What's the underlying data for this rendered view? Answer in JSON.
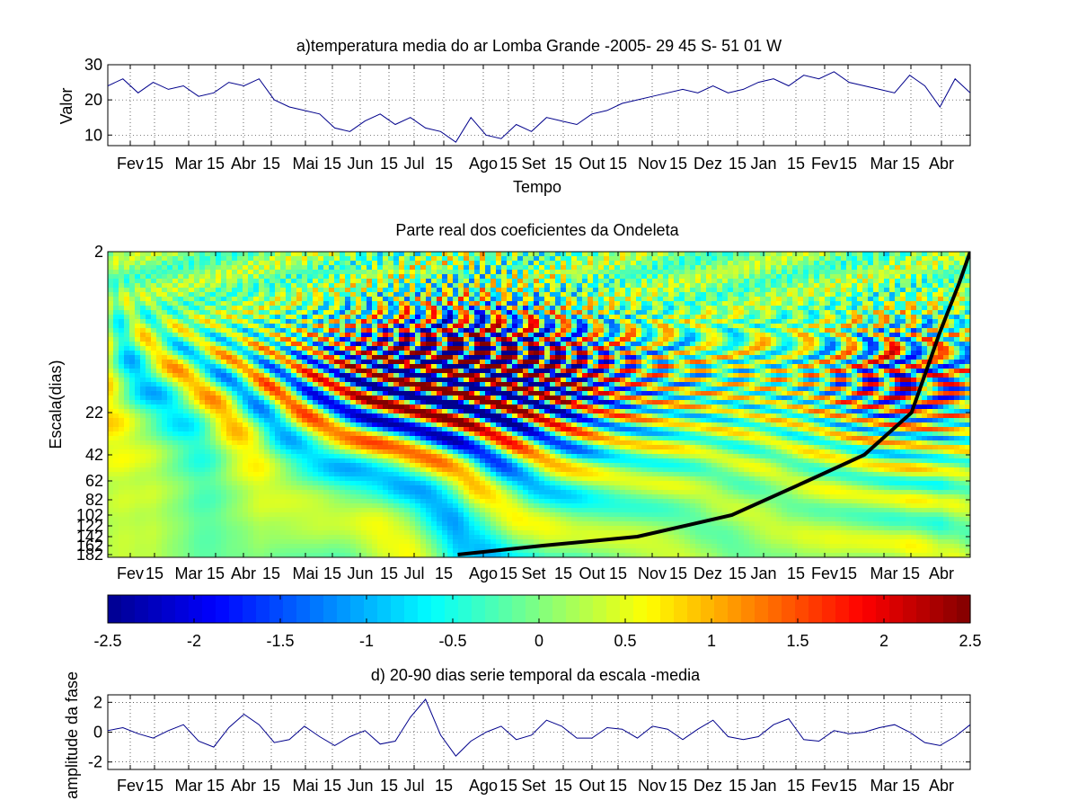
{
  "figure": {
    "background": "#ffffff",
    "axis_color": "#000000",
    "line_color": "#00008b",
    "coi_color": "#000000"
  },
  "month_ticks": [
    "Fev",
    "15",
    "Mar",
    "15",
    "Abr",
    "15",
    "Mai",
    "15",
    "Jun",
    "15",
    "Jul",
    "15",
    "Ago",
    "15",
    "Set",
    "15",
    "Out",
    "15",
    "Nov",
    "15",
    "Dez",
    "15",
    "Jan",
    "15",
    "Fev",
    "15",
    "Mar",
    "15",
    "Abr"
  ],
  "chart_data": [
    {
      "id": "panel_a",
      "type": "line",
      "title": "a)temperatura media do ar Lomba Grande -2005- 29 45 S- 51 01 W",
      "xlabel": "Tempo",
      "ylabel": "Valor",
      "ylim": [
        7,
        30
      ],
      "yticks": [
        10,
        20,
        30
      ],
      "xlim": [
        0,
        456
      ],
      "grid": true,
      "series": [
        {
          "x": [
            0,
            8,
            16,
            24,
            32,
            40,
            48,
            56,
            64,
            72,
            80,
            88,
            96,
            104,
            112,
            120,
            128,
            136,
            144,
            152,
            160,
            168,
            176,
            184,
            192,
            200,
            208,
            216,
            224,
            232,
            240,
            248,
            256,
            264,
            272,
            280,
            288,
            296,
            304,
            312,
            320,
            328,
            336,
            344,
            352,
            360,
            368,
            376,
            384,
            392,
            400,
            408,
            416,
            424,
            432,
            440,
            448,
            456
          ],
          "values": [
            24,
            26,
            22,
            25,
            23,
            24,
            21,
            22,
            25,
            24,
            26,
            20,
            18,
            17,
            16,
            12,
            11,
            14,
            16,
            13,
            15,
            12,
            11,
            8,
            15,
            10,
            9,
            13,
            11,
            15,
            14,
            13,
            16,
            17,
            19,
            20,
            21,
            22,
            23,
            22,
            24,
            22,
            23,
            25,
            26,
            24,
            27,
            26,
            28,
            25,
            24,
            23,
            22,
            27,
            24,
            18,
            26,
            22
          ]
        }
      ]
    },
    {
      "id": "panel_b",
      "type": "heatmap",
      "title": "Parte real dos coeficientes da Ondeleta",
      "ylabel": "Escala(dias)",
      "ytick_labels": [
        "2",
        "22",
        "42",
        "62",
        "82",
        "102",
        "122",
        "142",
        "162",
        "182"
      ],
      "xlim": [
        0,
        456
      ],
      "color_range": [
        -2.5,
        2.5
      ],
      "cone_of_influence": {
        "x": [
          185,
          230,
          280,
          330,
          370,
          400,
          425,
          440,
          450,
          456
        ],
        "scale": [
          182,
          162,
          142,
          102,
          62,
          42,
          22,
          12,
          6,
          2
        ]
      }
    },
    {
      "id": "colorbar",
      "type": "colorbar",
      "range": [
        -2.5,
        2.5
      ],
      "tick_labels": [
        "-2.5",
        "-2",
        "-1.5",
        "-1",
        "-0.5",
        "0",
        "0.5",
        "1",
        "1.5",
        "2",
        "2.5"
      ],
      "colors": [
        "#00008f",
        "#0000ff",
        "#0080ff",
        "#00ffff",
        "#80ff80",
        "#ffff00",
        "#ff8000",
        "#ff0000",
        "#800000"
      ]
    },
    {
      "id": "panel_d",
      "type": "line",
      "title": "d) 20-90 dias serie temporal da escala -media",
      "ylabel": "amplitude da fase",
      "ylim": [
        -2.5,
        2.5
      ],
      "yticks": [
        -2,
        0,
        2
      ],
      "xlim": [
        0,
        456
      ],
      "grid": true,
      "series": [
        {
          "x": [
            0,
            8,
            16,
            24,
            32,
            40,
            48,
            56,
            64,
            72,
            80,
            88,
            96,
            104,
            112,
            120,
            128,
            136,
            144,
            152,
            160,
            168,
            176,
            184,
            192,
            200,
            208,
            216,
            224,
            232,
            240,
            248,
            256,
            264,
            272,
            280,
            288,
            296,
            304,
            312,
            320,
            328,
            336,
            344,
            352,
            360,
            368,
            376,
            384,
            392,
            400,
            408,
            416,
            424,
            432,
            440,
            448,
            456
          ],
          "values": [
            0.1,
            0.3,
            -0.1,
            -0.4,
            0.1,
            0.5,
            -0.6,
            -1.0,
            0.3,
            1.2,
            0.5,
            -0.7,
            -0.5,
            0.4,
            -0.3,
            -0.9,
            -0.3,
            0.1,
            -0.8,
            -0.6,
            1.0,
            2.2,
            -0.2,
            -1.6,
            -0.6,
            0.0,
            0.4,
            -0.5,
            -0.2,
            0.8,
            0.4,
            -0.4,
            -0.4,
            0.3,
            0.2,
            -0.4,
            0.4,
            0.2,
            -0.5,
            0.2,
            0.8,
            -0.3,
            -0.5,
            -0.3,
            0.5,
            0.9,
            -0.5,
            -0.6,
            0.1,
            -0.1,
            0.0,
            0.3,
            0.5,
            0.0,
            -0.7,
            -0.9,
            -0.3,
            0.5
          ]
        }
      ]
    }
  ]
}
